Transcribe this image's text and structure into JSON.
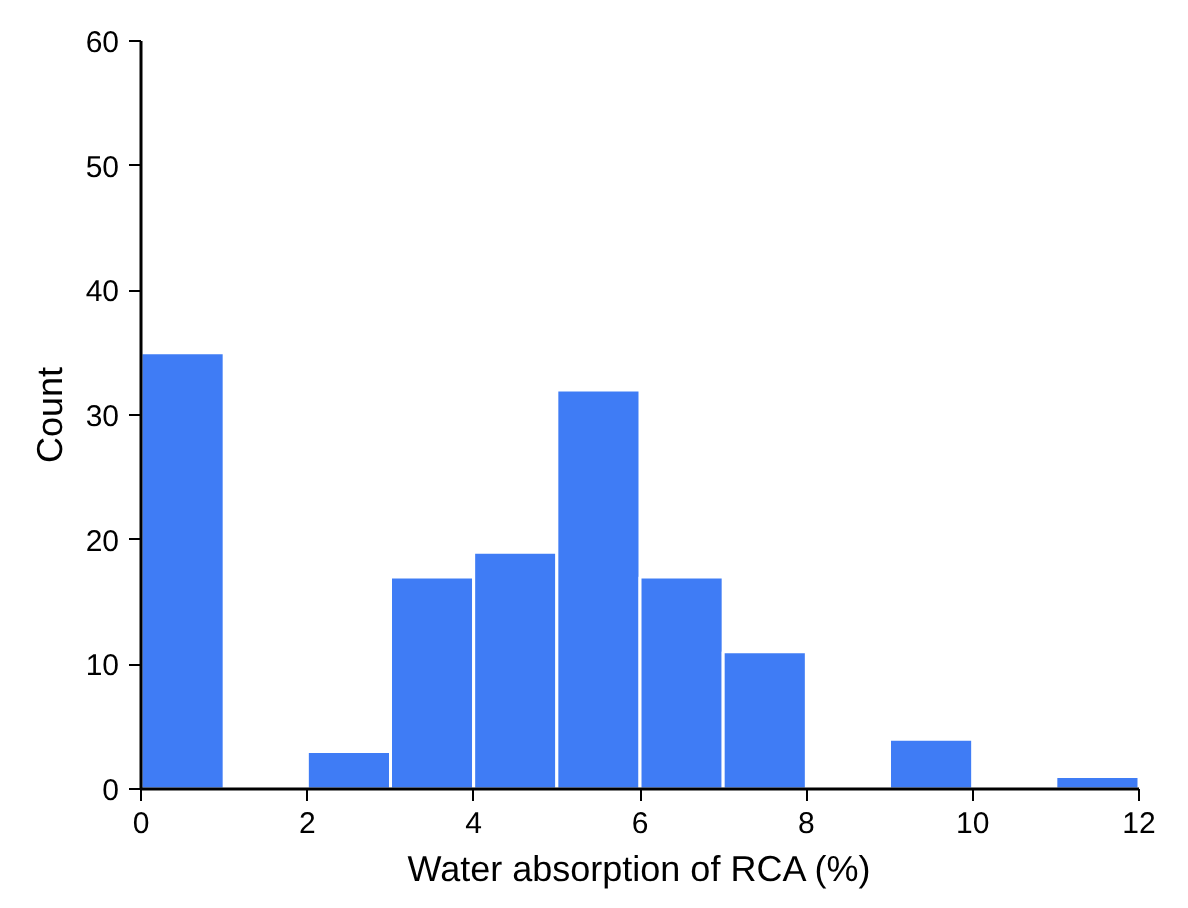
{
  "chart_data": {
    "type": "histogram",
    "xlabel": "Water absorption of RCA (%)",
    "ylabel": "Count",
    "bins": [
      0,
      1,
      2,
      3,
      4,
      5,
      6,
      7,
      8,
      9,
      10,
      11,
      12
    ],
    "values": [
      35,
      0,
      3,
      17,
      19,
      32,
      17,
      11,
      0,
      4,
      0,
      1
    ],
    "color": "#3f7cf5",
    "xlim": [
      0,
      12
    ],
    "xticks": [
      0,
      2,
      4,
      6,
      8,
      10,
      12
    ],
    "ylim": [
      0,
      60
    ],
    "yticks": [
      0,
      10,
      20,
      30,
      40,
      50,
      60
    ],
    "grid": false
  }
}
